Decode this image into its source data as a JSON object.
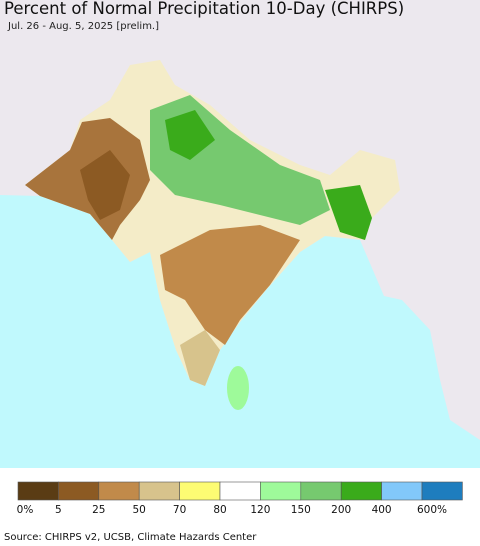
{
  "header": {
    "title": "Percent of Normal Precipitation 10-Day (CHIRPS)",
    "subtitle": "Jul. 26 - Aug. 5, 2025 [prelim.]"
  },
  "legend": {
    "labels": [
      "0%",
      "5",
      "25",
      "50",
      "70",
      "80",
      "120",
      "150",
      "200",
      "400",
      "600%"
    ],
    "colors": [
      "#5a3c14",
      "#8c5a23",
      "#c18a4a",
      "#d7c38c",
      "#fdfc73",
      "#ffffff",
      "#9efa9a",
      "#76c96f",
      "#3aab1b",
      "#82c8fa",
      "#1e7dbe"
    ]
  },
  "footer": {
    "source": "Source: CHIRPS v2, UCSB, Climate Hazards Center"
  }
}
